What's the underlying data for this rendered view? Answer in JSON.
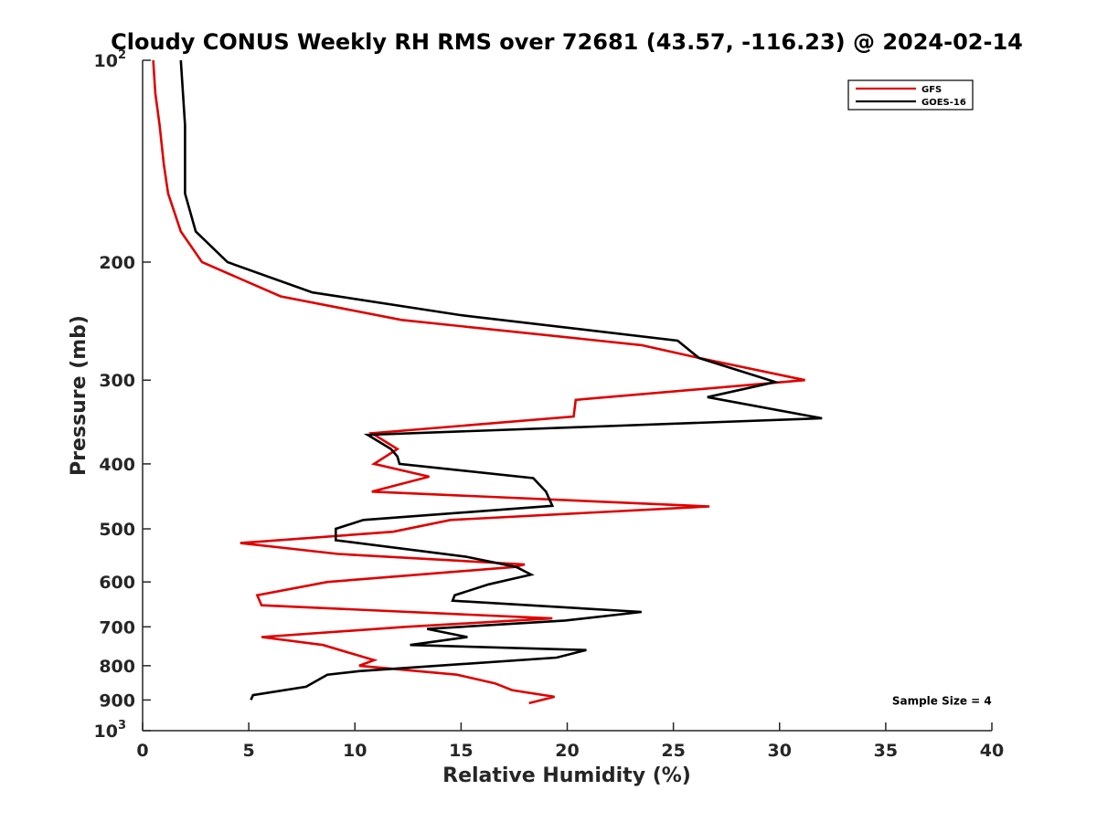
{
  "chart_data": {
    "type": "line",
    "title": "Cloudy CONUS Weekly RH RMS over 72681 (43.57, -116.23) @ 2024-02-14",
    "xlabel": "Relative Humidity (%)",
    "ylabel": "Pressure (mb)",
    "xlim": [
      0,
      40
    ],
    "ylim": [
      100,
      1000
    ],
    "y_scale": "log",
    "y_reversed": true,
    "x_ticks": [
      0,
      5,
      10,
      15,
      20,
      25,
      30,
      35,
      40
    ],
    "y_ticks": [
      {
        "value": 100,
        "base": "10",
        "exp": "2"
      },
      {
        "value": 200,
        "label": "200"
      },
      {
        "value": 300,
        "label": "300"
      },
      {
        "value": 400,
        "label": "400"
      },
      {
        "value": 500,
        "label": "500"
      },
      {
        "value": 600,
        "label": "600"
      },
      {
        "value": 700,
        "label": "700"
      },
      {
        "value": 800,
        "label": "800"
      },
      {
        "value": 900,
        "label": "900"
      },
      {
        "value": 1000,
        "base": "10",
        "exp": "3"
      }
    ],
    "grid": false,
    "legend_position": "top-right",
    "series": [
      {
        "name": "GFS",
        "color": "#e00000",
        "points": [
          [
            0.5,
            100
          ],
          [
            0.6,
            112
          ],
          [
            0.8,
            125
          ],
          [
            1.0,
            143
          ],
          [
            1.2,
            158
          ],
          [
            1.8,
            180
          ],
          [
            2.8,
            200
          ],
          [
            6.5,
            225
          ],
          [
            12.2,
            244
          ],
          [
            23.5,
            266
          ],
          [
            26.2,
            278
          ],
          [
            31.2,
            300
          ],
          [
            20.4,
            321
          ],
          [
            20.3,
            340
          ],
          [
            10.8,
            360
          ],
          [
            12.0,
            380
          ],
          [
            10.9,
            400
          ],
          [
            13.5,
            418
          ],
          [
            10.8,
            440
          ],
          [
            26.7,
            463
          ],
          [
            14.5,
            485
          ],
          [
            11.8,
            505
          ],
          [
            4.6,
            525
          ],
          [
            9.2,
            545
          ],
          [
            18.0,
            565
          ],
          [
            17.5,
            570
          ],
          [
            8.7,
            600
          ],
          [
            5.4,
            628
          ],
          [
            5.6,
            650
          ],
          [
            19.3,
            680
          ],
          [
            12.4,
            700
          ],
          [
            5.6,
            725
          ],
          [
            8.5,
            745
          ],
          [
            9.9,
            768
          ],
          [
            10.9,
            785
          ],
          [
            10.2,
            800
          ],
          [
            14.8,
            825
          ],
          [
            16.6,
            850
          ],
          [
            17.4,
            870
          ],
          [
            19.4,
            890
          ],
          [
            18.2,
            910
          ]
        ]
      },
      {
        "name": "GOES-16",
        "color": "#000000",
        "points": [
          [
            1.8,
            100
          ],
          [
            2.0,
            125
          ],
          [
            2.0,
            158
          ],
          [
            2.5,
            180
          ],
          [
            4.0,
            200
          ],
          [
            8.0,
            222
          ],
          [
            15.0,
            240
          ],
          [
            25.2,
            262
          ],
          [
            26.2,
            278
          ],
          [
            29.8,
            302
          ],
          [
            26.6,
            318
          ],
          [
            32.0,
            342
          ],
          [
            10.6,
            362
          ],
          [
            11.7,
            380
          ],
          [
            12.0,
            390
          ],
          [
            12.1,
            400
          ],
          [
            18.4,
            420
          ],
          [
            19.0,
            440
          ],
          [
            19.3,
            462
          ],
          [
            10.4,
            485
          ],
          [
            9.1,
            500
          ],
          [
            9.1,
            520
          ],
          [
            15.2,
            550
          ],
          [
            17.6,
            570
          ],
          [
            18.3,
            585
          ],
          [
            16.3,
            605
          ],
          [
            14.7,
            628
          ],
          [
            14.6,
            640
          ],
          [
            23.5,
            665
          ],
          [
            19.9,
            685
          ],
          [
            13.4,
            705
          ],
          [
            15.3,
            725
          ],
          [
            12.6,
            745
          ],
          [
            20.9,
            758
          ],
          [
            19.5,
            778
          ],
          [
            10.2,
            815
          ],
          [
            8.7,
            825
          ],
          [
            7.7,
            860
          ],
          [
            5.2,
            885
          ],
          [
            5.1,
            900
          ]
        ]
      }
    ],
    "annotations": [
      {
        "text": "Sample Size = 4",
        "x": 35.3,
        "y": 900
      }
    ]
  }
}
